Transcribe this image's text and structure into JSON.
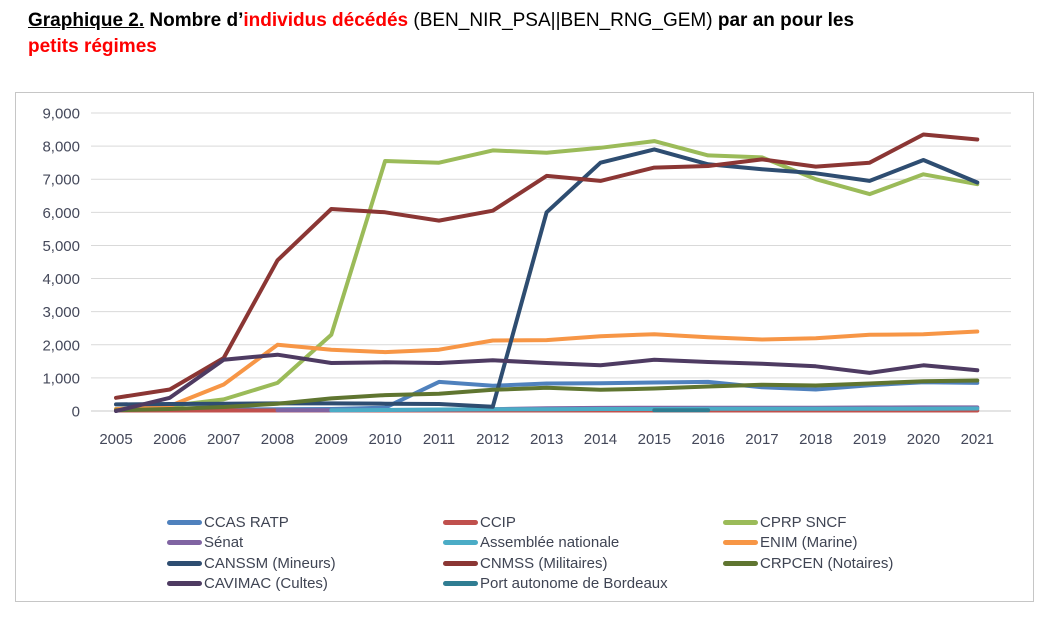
{
  "title": {
    "segments": [
      {
        "text": "Graphique 2.",
        "style": "seg-underline"
      },
      {
        "text": " Nombre d’",
        "style": ""
      },
      {
        "text": "individus décédés",
        "style": "seg-red"
      },
      {
        "text": " (BEN_NIR_PSA||BEN_RNG_GEM) ",
        "style": "seg-normal"
      },
      {
        "text": "par an pour les ",
        "style": ""
      },
      {
        "text": "petits régimes",
        "style": "seg-red",
        "newline_before": true
      }
    ]
  },
  "colors": {
    "axis_text": "#44485A",
    "legend_text": "#3F4453",
    "gridline": "#D9D9D9",
    "zero_line": "#C9C9C9",
    "frame_border": "#C6C6C6",
    "title_red": "#FE0000"
  },
  "chart_data": {
    "type": "line",
    "title": "Nombre d'individus décédés (BEN_NIR_PSA||BEN_RNG_GEM) par an pour les petits régimes",
    "xlabel": "",
    "ylabel": "",
    "x": [
      2005,
      2006,
      2007,
      2008,
      2009,
      2010,
      2011,
      2012,
      2013,
      2014,
      2015,
      2016,
      2017,
      2018,
      2019,
      2020,
      2021
    ],
    "ylim": [
      0,
      9000
    ],
    "ytick_step": 1000,
    "yticks": [
      "0",
      "1,000",
      "2,000",
      "3,000",
      "4,000",
      "5,000",
      "6,000",
      "7,000",
      "8,000",
      "9,000"
    ],
    "grid": true,
    "legend_position": "bottom",
    "series": [
      {
        "name": "CCAS RATP",
        "color": "#4F81BD",
        "values": [
          40,
          40,
          45,
          50,
          60,
          100,
          880,
          760,
          830,
          840,
          860,
          880,
          720,
          650,
          780,
          870,
          850
        ]
      },
      {
        "name": "CCIP",
        "color": "#C0504D",
        "values": [
          15,
          15,
          15,
          15,
          15,
          15,
          15,
          15,
          15,
          15,
          15,
          15,
          15,
          15,
          15,
          15,
          15
        ]
      },
      {
        "name": "CPRP SNCF",
        "color": "#9BBB59",
        "values": [
          60,
          150,
          350,
          850,
          2300,
          7550,
          7500,
          7870,
          7800,
          7950,
          8150,
          7720,
          7660,
          7000,
          6550,
          7150,
          6850
        ]
      },
      {
        "name": "Sénat",
        "color": "#8064A2",
        "values": [
          null,
          null,
          null,
          20,
          25,
          30,
          40,
          55,
          85,
          95,
          100,
          100,
          100,
          100,
          105,
          110,
          110
        ]
      },
      {
        "name": "Assemblée nationale",
        "color": "#4BACC6",
        "values": [
          null,
          null,
          null,
          null,
          20,
          30,
          45,
          50,
          55,
          60,
          60,
          65,
          65,
          65,
          70,
          70,
          75
        ]
      },
      {
        "name": "ENIM (Marine)",
        "color": "#F79646",
        "values": [
          50,
          150,
          800,
          2000,
          1850,
          1780,
          1850,
          2130,
          2140,
          2260,
          2320,
          2230,
          2160,
          2200,
          2300,
          2320,
          2400
        ]
      },
      {
        "name": "CANSSM (Mineurs)",
        "color": "#2E4D71",
        "values": [
          200,
          210,
          220,
          230,
          230,
          220,
          210,
          130,
          6000,
          7500,
          7900,
          7450,
          7300,
          7180,
          6950,
          7580,
          6900
        ]
      },
      {
        "name": "CNMSS (Militaires)",
        "color": "#8B3634",
        "values": [
          400,
          650,
          1600,
          4550,
          6100,
          6000,
          5750,
          6050,
          7100,
          6950,
          7350,
          7400,
          7600,
          7380,
          7500,
          8350,
          8200
        ]
      },
      {
        "name": "CRPCEN (Notaires)",
        "color": "#5F7530",
        "values": [
          20,
          60,
          120,
          220,
          380,
          480,
          520,
          640,
          700,
          640,
          680,
          740,
          790,
          770,
          830,
          900,
          920
        ]
      },
      {
        "name": "CAVIMAC (Cultes)",
        "color": "#4E3B62",
        "values": [
          0,
          400,
          1550,
          1700,
          1450,
          1470,
          1450,
          1530,
          1450,
          1380,
          1550,
          1480,
          1430,
          1350,
          1150,
          1380,
          1230
        ]
      },
      {
        "name": "Port autonome de Bordeaux",
        "color": "#2F7D92",
        "values": [
          null,
          null,
          null,
          null,
          null,
          null,
          null,
          null,
          null,
          null,
          25,
          25,
          null,
          null,
          null,
          null,
          null
        ]
      }
    ]
  }
}
